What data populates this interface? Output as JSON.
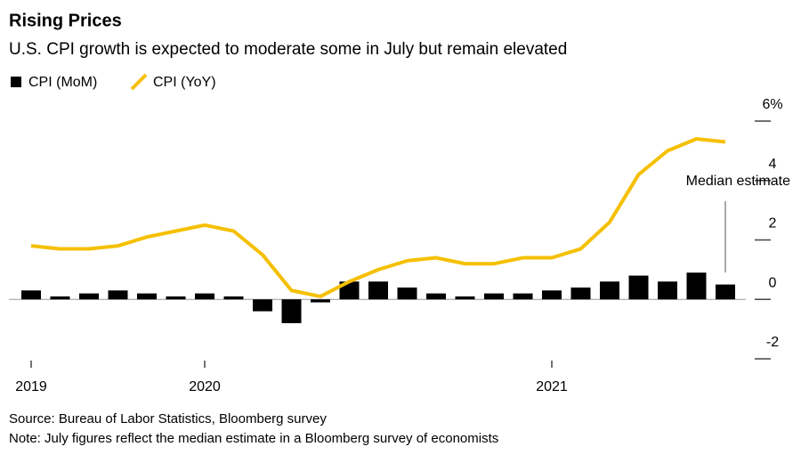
{
  "chart_data": {
    "type": "bar-line",
    "title": "Rising Prices",
    "subtitle": "U.S. CPI growth is expected to moderate some in July but remain elevated",
    "categories": [
      "2019",
      null,
      null,
      null,
      null,
      null,
      "2020",
      null,
      null,
      null,
      null,
      null,
      null,
      null,
      null,
      null,
      null,
      null,
      "2021",
      null,
      null,
      null,
      null,
      null,
      null
    ],
    "series": [
      {
        "name": "CPI (MoM)",
        "type": "bar",
        "color": "#000000",
        "values": [
          0.3,
          0.1,
          0.2,
          0.3,
          0.2,
          0.1,
          0.2,
          0.1,
          -0.4,
          -0.8,
          -0.1,
          0.6,
          0.6,
          0.4,
          0.2,
          0.1,
          0.2,
          0.2,
          0.3,
          0.4,
          0.6,
          0.8,
          0.6,
          0.9,
          0.5
        ]
      },
      {
        "name": "CPI (YoY)",
        "type": "line",
        "color": "#f5c000",
        "values": [
          1.8,
          1.7,
          1.7,
          1.8,
          2.1,
          2.3,
          2.5,
          2.3,
          1.5,
          0.3,
          0.1,
          0.6,
          1.0,
          1.3,
          1.4,
          1.2,
          1.2,
          1.4,
          1.4,
          1.7,
          2.6,
          4.2,
          5.0,
          5.4,
          5.3
        ]
      }
    ],
    "ylim": [
      -2,
      6
    ],
    "yticks": [
      -2,
      0,
      2,
      4,
      {
        "value": 6,
        "label": "6%"
      }
    ],
    "annotation": "Median estimate",
    "source": "Source: Bureau of Labor Statistics, Bloomberg survey",
    "note": "Note: July figures reflect the median estimate in a Bloomberg survey of economists"
  }
}
